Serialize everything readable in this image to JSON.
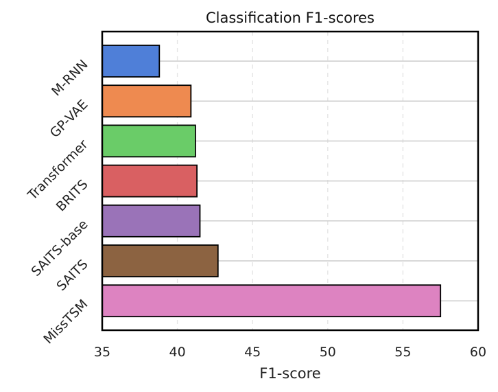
{
  "chart_data": {
    "type": "bar",
    "orientation": "horizontal",
    "title": "Classification F1-scores",
    "xlabel": "F1-score",
    "ylabel": "",
    "xlim": [
      35,
      60
    ],
    "xticks": [
      "35",
      "40",
      "45",
      "50",
      "55",
      "60"
    ],
    "categories": [
      "M-RNN",
      "GP-VAE",
      "Transformer",
      "BRITS",
      "SAITS-base",
      "SAITS",
      "MissTSM"
    ],
    "values": [
      38.8,
      40.9,
      41.2,
      41.3,
      41.5,
      42.7,
      57.5
    ],
    "colors": [
      "#4f7fd8",
      "#ee8a50",
      "#6acc68",
      "#d96062",
      "#9a73b8",
      "#8c6341",
      "#dd83c1"
    ],
    "grid": {
      "x": "dashed",
      "y": "solid"
    }
  }
}
